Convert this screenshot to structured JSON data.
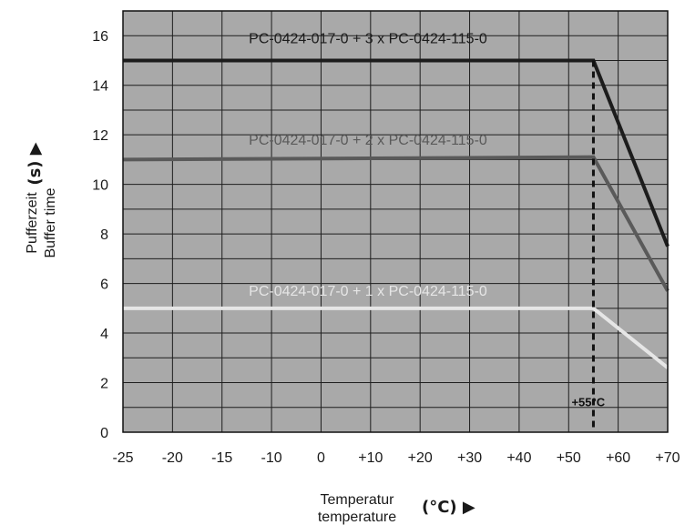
{
  "chart_data": {
    "type": "line",
    "x_ticks": [
      "-25",
      "-20",
      "-15",
      "-10",
      "0",
      "+10",
      "+20",
      "+30",
      "+40",
      "+50",
      "+60",
      "+70"
    ],
    "y_ticks": [
      "0",
      "2",
      "4",
      "6",
      "8",
      "10",
      "12",
      "14",
      "16"
    ],
    "ylim": [
      0,
      17
    ],
    "grid": true,
    "series": [
      {
        "name": "PC-0424-017-0 + 3 x PC-0424-115-0",
        "color": "#1c1c1c",
        "x": [
          "-25",
          "+55",
          "+70"
        ],
        "y": [
          15,
          15,
          7.5
        ]
      },
      {
        "name": "PC-0424-017-0 + 2 x PC-0424-115-0",
        "color": "#5a5a5a",
        "x": [
          "-25",
          "+55",
          "+70"
        ],
        "y": [
          11,
          11.1,
          5.7
        ]
      },
      {
        "name": "PC-0424-017-0 + 1 x PC-0424-115-0",
        "color": "#e6e6e6",
        "x": [
          "-25",
          "+55",
          "+70"
        ],
        "y": [
          5,
          5,
          2.6
        ]
      }
    ],
    "annotation": {
      "text": "+55°C",
      "x": "+55",
      "style": "dashed-vertical"
    },
    "ylabel_line1": "Pufferzeit",
    "ylabel_line2": "Buffer time",
    "ylabel_unit": "(s) ▶",
    "xlabel_line1": "Temperatur",
    "xlabel_line2": "temperature",
    "xlabel_unit": "(°C) ▶",
    "plot_background": "#a9a9a9",
    "grid_color": "#1e1e1e"
  }
}
